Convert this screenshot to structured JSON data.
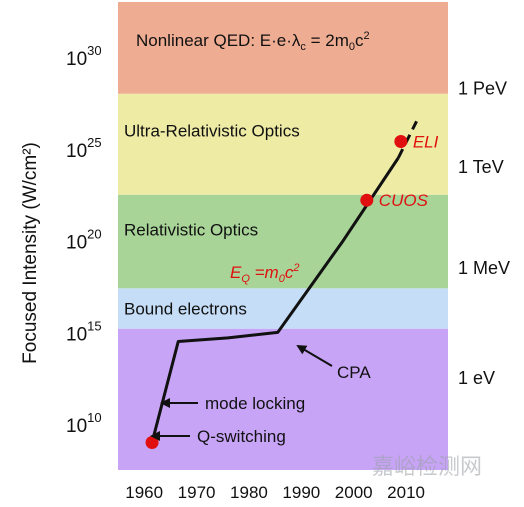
{
  "chart_data": {
    "type": "line",
    "ylabel": "Focused Intensity (W/cm²)",
    "xlim": [
      1955,
      2018
    ],
    "ylim": [
      7.5,
      33
    ],
    "x_ticks": [
      "1960",
      "1970",
      "1980",
      "1990",
      "2000",
      "2010"
    ],
    "x_tick_values": [
      1960,
      1970,
      1980,
      1990,
      2000,
      2010
    ],
    "y_ticks": [
      {
        "value": 10,
        "label": "10",
        "exp": "10"
      },
      {
        "value": 15,
        "label": "10",
        "exp": "15"
      },
      {
        "value": 20,
        "label": "10",
        "exp": "20"
      },
      {
        "value": 25,
        "label": "10",
        "exp": "25"
      },
      {
        "value": 30,
        "label": "10",
        "exp": "30"
      }
    ],
    "bands": [
      {
        "from": 7.5,
        "to": 15.2,
        "color": "#c8a4f7",
        "label": ""
      },
      {
        "from": 15.2,
        "to": 17.4,
        "color": "#c5ddf7",
        "label": "Bound electrons",
        "label_y": 16.3
      },
      {
        "from": 17.4,
        "to": 22.5,
        "color": "#a8d498",
        "label": "Relativistic Optics",
        "label_y": 20.6
      },
      {
        "from": 22.5,
        "to": 28.0,
        "color": "#eeeba5",
        "label": "Ultra-Relativistic Optics",
        "label_y": 26.0
      },
      {
        "from": 28.0,
        "to": 33.0,
        "color": "#eeac92",
        "label": "",
        "label_y": 30.5
      }
    ],
    "top_band_label": {
      "pre": "Nonlinear QED: E·e·λ",
      "sub": "c",
      "mid": " = 2m",
      "sub2": "0",
      "post": "c",
      "sup": "2"
    },
    "energy_labels": [
      {
        "y": 28.3,
        "label": "1 PeV"
      },
      {
        "y": 24.0,
        "label": "1 TeV"
      },
      {
        "y": 18.5,
        "label": "1 MeV"
      },
      {
        "y": 12.5,
        "label": "1 eV"
      }
    ],
    "series": [
      {
        "style": "solid",
        "x": [
          1961.5,
          1963.5,
          1966.5,
          1976,
          1985.5,
          1998,
          2008.5
        ],
        "y": [
          9.0,
          11.2,
          14.5,
          14.7,
          15.0,
          20.0,
          24.5
        ]
      },
      {
        "style": "dashed",
        "x": [
          2008.5,
          2012
        ],
        "y": [
          24.5,
          26.5
        ]
      }
    ],
    "points": [
      {
        "x": 1961.5,
        "y": 9.0,
        "label": ""
      },
      {
        "x": 2002.5,
        "y": 22.2,
        "label": "CUOS"
      },
      {
        "x": 2009,
        "y": 25.4,
        "label": "ELI"
      }
    ],
    "equation_label": {
      "pre": "E",
      "sub": "Q",
      "mid": " =m",
      "sub2": "0",
      "post": "c",
      "sup": "2"
    },
    "annotations": [
      {
        "text": "CPA"
      },
      {
        "text": "mode locking"
      },
      {
        "text": "Q-switching"
      }
    ]
  },
  "watermark": "嘉峪检测网"
}
